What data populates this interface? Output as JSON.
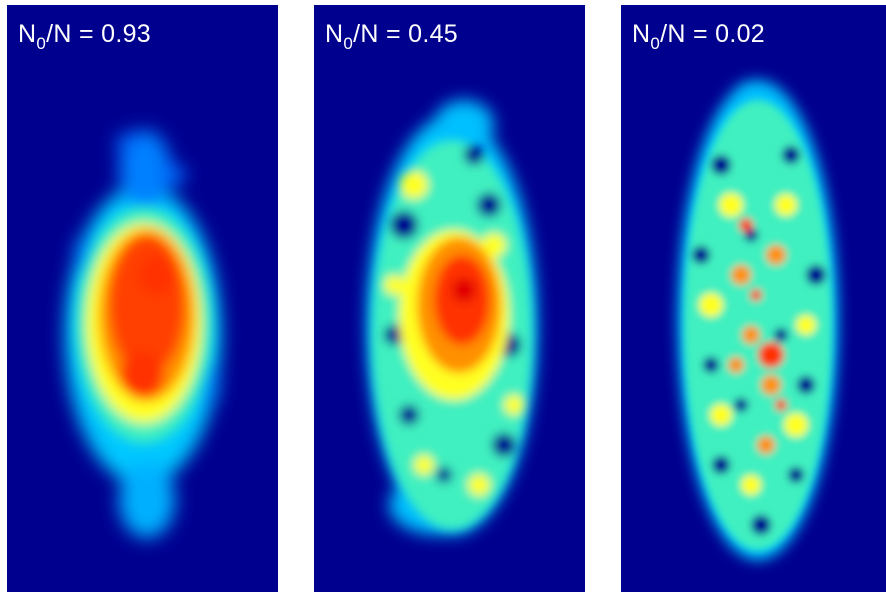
{
  "panels": [
    {
      "symbol": "N",
      "subscript": "0",
      "suffix": "/N = 0.93",
      "ratio": 0.93
    },
    {
      "symbol": "N",
      "subscript": "0",
      "suffix": "/N = 0.45",
      "ratio": 0.45
    },
    {
      "symbol": "N",
      "subscript": "0",
      "suffix": "/N = 0.02",
      "ratio": 0.02
    }
  ],
  "colormap": [
    "#00008f",
    "#0040ff",
    "#00e0ff",
    "#70ffa0",
    "#ffff00",
    "#ff8000",
    "#ff2000"
  ]
}
